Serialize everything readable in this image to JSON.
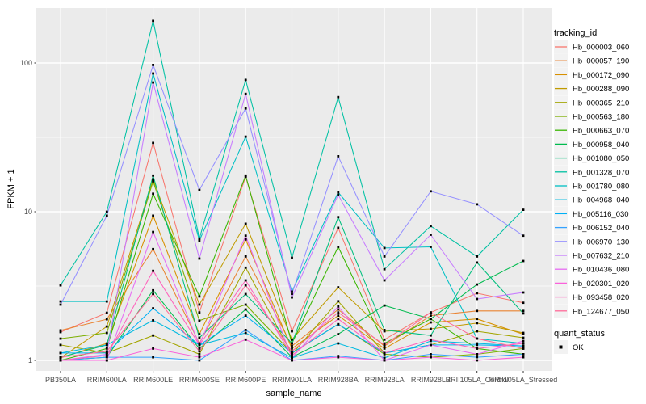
{
  "chart_data": {
    "type": "line",
    "title": "",
    "x_axis": {
      "label": "sample_name",
      "categories": [
        "PB350LA",
        "RRIM600LA",
        "RRIM600LE",
        "RRIM600SE",
        "RRIM600PE",
        "RRIM901LA",
        "RRIM928BA",
        "RRIM928LA",
        "RRIM928LB",
        "RRII105LA_Control",
        "RRII105LA_Stressed"
      ]
    },
    "y_axis": {
      "label": "FPKM + 1",
      "scale": "log10",
      "ticks": [
        1,
        10,
        100
      ],
      "minor_ticks": [
        3.162,
        31.623
      ],
      "range": [
        0.85,
        235
      ]
    },
    "legend": {
      "position": "right",
      "tracking_title": "tracking_id",
      "quant_title": "quant_status",
      "quant_entries": [
        {
          "label": "OK",
          "marker": "black-square"
        }
      ]
    },
    "style": {
      "panel_background": "#EBEBEB",
      "gridline_color": "#FFFFFF",
      "legend_key_fill": "#F2F2F2",
      "marker_color": "#000000",
      "tick_color": "#333333"
    },
    "series": [
      {
        "tracking_id": "Hb_000003_060",
        "color": "#F8766D",
        "values": [
          1.55,
          2.09,
          29.0,
          2.1,
          17.2,
          1.57,
          7.8,
          1.38,
          2.1,
          2.83,
          2.44
        ]
      },
      {
        "tracking_id": "Hb_000057_190",
        "color": "#EA8331",
        "values": [
          1.59,
          1.89,
          5.6,
          1.3,
          5.0,
          1.25,
          2.2,
          1.25,
          2.0,
          2.15,
          2.15
        ]
      },
      {
        "tracking_id": "Hb_000172_090",
        "color": "#D89000",
        "values": [
          1.04,
          1.3,
          9.4,
          1.5,
          6.5,
          1.2,
          2.0,
          1.2,
          1.8,
          1.9,
          1.5
        ]
      },
      {
        "tracking_id": "Hb_000288_090",
        "color": "#C09B00",
        "values": [
          1.04,
          1.69,
          16.5,
          2.37,
          8.3,
          1.38,
          3.1,
          1.57,
          1.63,
          1.78,
          1.53
        ]
      },
      {
        "tracking_id": "Hb_000365_210",
        "color": "#A3A500",
        "values": [
          1.27,
          1.12,
          1.47,
          1.1,
          4.2,
          1.1,
          2.5,
          1.12,
          1.27,
          1.57,
          1.42
        ]
      },
      {
        "tracking_id": "Hb_000563_180",
        "color": "#7CAE00",
        "values": [
          1.4,
          1.53,
          16.0,
          1.85,
          2.37,
          1.12,
          1.75,
          1.1,
          1.05,
          1.1,
          1.2
        ]
      },
      {
        "tracking_id": "Hb_000663_070",
        "color": "#39B600",
        "values": [
          1.0,
          1.2,
          13.2,
          2.69,
          17.5,
          1.3,
          5.8,
          1.3,
          1.9,
          1.2,
          1.1
        ]
      },
      {
        "tracking_id": "Hb_000958_040",
        "color": "#00BB4E",
        "values": [
          1.0,
          1.05,
          2.96,
          1.2,
          2.2,
          1.05,
          1.5,
          2.34,
          1.9,
          3.24,
          4.66
        ]
      },
      {
        "tracking_id": "Hb_001080_050",
        "color": "#00BF7D",
        "values": [
          1.05,
          1.27,
          17.5,
          1.42,
          2.79,
          1.3,
          9.2,
          1.6,
          1.47,
          4.55,
          2.07
        ]
      },
      {
        "tracking_id": "Hb_001328_070",
        "color": "#00C1A3",
        "values": [
          3.2,
          10.0,
          192.0,
          6.6,
          77.0,
          4.9,
          59.0,
          4.1,
          8.0,
          5.0,
          10.3
        ]
      },
      {
        "tracking_id": "Hb_001780_080",
        "color": "#00BFC4",
        "values": [
          2.49,
          2.49,
          85.0,
          6.4,
          32.0,
          2.9,
          13.5,
          5.7,
          5.8,
          1.4,
          1.3
        ]
      },
      {
        "tracking_id": "Hb_004968_040",
        "color": "#00BAE0",
        "values": [
          1.12,
          1.27,
          1.86,
          1.27,
          1.53,
          1.04,
          1.3,
          1.04,
          1.35,
          1.3,
          1.25
        ]
      },
      {
        "tracking_id": "Hb_005116_030",
        "color": "#00B0F6",
        "values": [
          1.12,
          1.12,
          2.24,
          1.27,
          2.0,
          1.12,
          1.75,
          1.12,
          1.27,
          1.27,
          1.25
        ]
      },
      {
        "tracking_id": "Hb_006152_040",
        "color": "#35A2FF",
        "values": [
          1.0,
          1.05,
          1.05,
          1.0,
          1.6,
          1.0,
          1.07,
          1.0,
          1.1,
          1.05,
          1.1
        ]
      },
      {
        "tracking_id": "Hb_006970_130",
        "color": "#9590FF",
        "values": [
          2.37,
          9.4,
          97.0,
          14.0,
          49.5,
          2.8,
          23.6,
          5.0,
          13.7,
          11.2,
          6.9
        ]
      },
      {
        "tracking_id": "Hb_007632_210",
        "color": "#C77CFF",
        "values": [
          1.0,
          1.1,
          74.0,
          4.84,
          62.0,
          2.65,
          13.0,
          3.45,
          7.0,
          2.59,
          2.86
        ]
      },
      {
        "tracking_id": "Hb_010436_080",
        "color": "#E76BF3",
        "values": [
          1.0,
          1.0,
          7.3,
          1.27,
          6.9,
          1.04,
          2.3,
          1.0,
          1.27,
          1.1,
          1.35
        ]
      },
      {
        "tracking_id": "Hb_020301_020",
        "color": "#FA62DB",
        "values": [
          1.0,
          1.0,
          1.2,
          1.05,
          1.38,
          1.0,
          1.05,
          1.0,
          1.05,
          1.0,
          1.05
        ]
      },
      {
        "tracking_id": "Hb_093458_020",
        "color": "#FF62BC",
        "values": [
          1.0,
          1.08,
          4.0,
          1.27,
          3.45,
          1.08,
          1.9,
          1.12,
          1.38,
          1.2,
          1.3
        ]
      },
      {
        "tracking_id": "Hb_124677_050",
        "color": "#FF6A98",
        "values": [
          1.05,
          1.15,
          2.8,
          1.15,
          3.2,
          1.15,
          2.1,
          1.27,
          2.1,
          1.4,
          1.2
        ]
      }
    ]
  }
}
